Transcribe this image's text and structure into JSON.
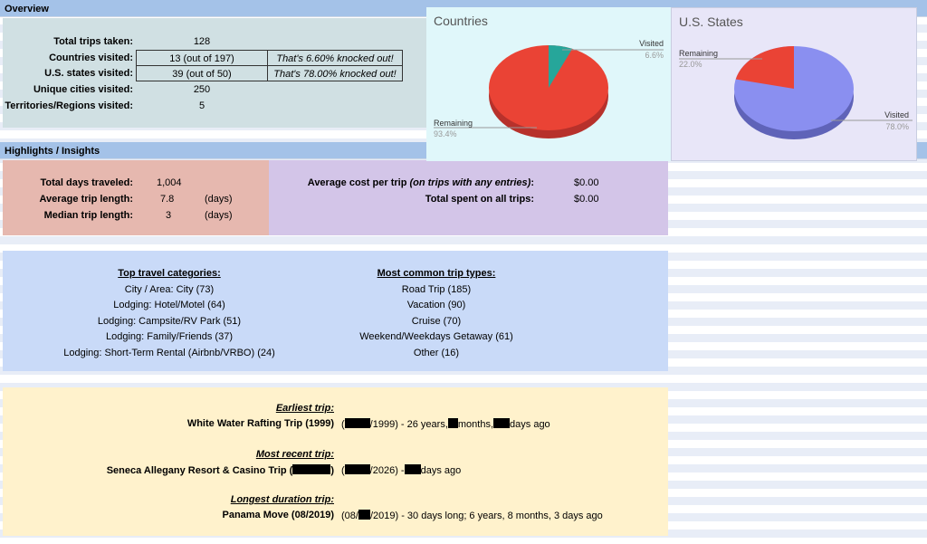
{
  "overview": {
    "header": "Overview",
    "rows": [
      {
        "label": "Total trips taken:",
        "value": "128",
        "note": ""
      },
      {
        "label": "Countries visited:",
        "value": "13 (out of 197)",
        "note": "That's 6.60% knocked out!"
      },
      {
        "label": "U.S. states visited:",
        "value": "39 (out of 50)",
        "note": "That's 78.00% knocked out!"
      },
      {
        "label": "Unique cities visited:",
        "value": "250",
        "note": ""
      },
      {
        "label": "Territories/Regions visited:",
        "value": "5",
        "note": ""
      }
    ]
  },
  "countries_chart": {
    "title": "Countries",
    "visited_label": "Visited",
    "visited_pct": "6.6%",
    "remaining_label": "Remaining",
    "remaining_pct": "93.4%",
    "colors": {
      "visited": "#26a69a",
      "remaining": "#ea4335"
    }
  },
  "states_chart": {
    "title": "U.S. States",
    "visited_label": "Visited",
    "visited_pct": "78.0%",
    "remaining_label": "Remaining",
    "remaining_pct": "22.0%",
    "colors": {
      "visited": "#8a8ff0",
      "remaining": "#ea4335"
    }
  },
  "chart_data": [
    {
      "type": "pie",
      "title": "Countries",
      "categories": [
        "Visited",
        "Remaining"
      ],
      "values": [
        6.6,
        93.4
      ],
      "legend": "labels"
    },
    {
      "type": "pie",
      "title": "U.S. States",
      "categories": [
        "Visited",
        "Remaining"
      ],
      "values": [
        78.0,
        22.0
      ],
      "legend": "labels"
    }
  ],
  "highlights": {
    "header": "Highlights / Insights",
    "duration": [
      {
        "label": "Total days traveled:",
        "value": "1,004",
        "unit": ""
      },
      {
        "label": "Average trip length:",
        "value": "7.8",
        "unit": "(days)"
      },
      {
        "label": "Median trip length:",
        "value": "3",
        "unit": "(days)"
      }
    ],
    "cost": {
      "avg_label_main": "Average cost per trip ",
      "avg_label_qual": "(on trips with any entries)",
      "avg_label_colon": ":",
      "avg_value": "$0.00",
      "total_label": "Total spent on all trips:",
      "total_value": "$0.00"
    }
  },
  "categories": {
    "title": "Top travel categories:",
    "items": [
      "City / Area: City (73)",
      "Lodging: Hotel/Motel (64)",
      "Lodging: Campsite/RV Park (51)",
      "Lodging: Family/Friends (37)",
      "Lodging: Short-Term Rental (Airbnb/VRBO) (24)"
    ]
  },
  "trip_types": {
    "title": "Most common trip types:",
    "items": [
      "Road Trip (185)",
      "Vacation (90)",
      "Cruise (70)",
      "Weekend/Weekdays Getaway (61)",
      "Other (16)"
    ]
  },
  "trips": {
    "earliest_title": "Earliest trip:",
    "earliest_name": "White Water Rafting Trip (1999)",
    "earliest_d1": "(",
    "earliest_d2": "/1999) - 26 years,",
    "earliest_d3": "months,",
    "earliest_d4": "days ago",
    "recent_title": "Most recent trip:",
    "recent_name_a": "Seneca Allegany Resort & Casino Trip (",
    "recent_name_b": ")",
    "recent_d1": "(",
    "recent_d2": "/2026) -",
    "recent_d3": "days ago",
    "longest_title": "Longest duration trip:",
    "longest_name": "Panama Move (08/2019)",
    "longest_d1": "(08/",
    "longest_d2": "/2019) - 30 days long; 6 years, 8 months, 3 days ago"
  }
}
